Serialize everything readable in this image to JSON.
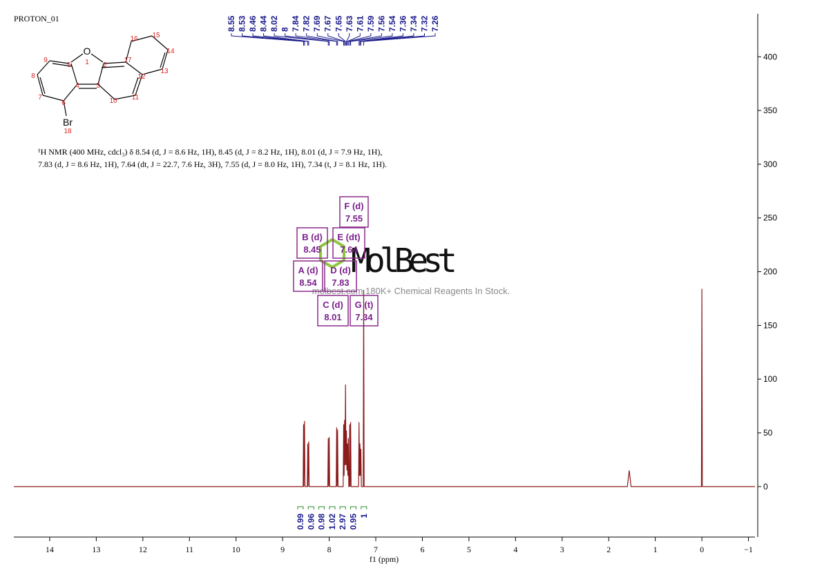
{
  "header": {
    "title": "PROTON_01"
  },
  "molecule": {
    "labels": [
      "O",
      "1",
      "5",
      "2",
      "4",
      "3",
      "9",
      "8",
      "7",
      "6",
      "Br",
      "18",
      "17",
      "16",
      "15",
      "14",
      "13",
      "12",
      "11",
      "10"
    ]
  },
  "description": {
    "lines": [
      "¹H NMR (400 MHz, cdcl₃) δ 8.54 (d, J = 8.6 Hz, 1H), 8.45 (d, J = 8.2 Hz, 1H), 8.01 (d, J = 7.9 Hz, 1H),",
      "7.83 (d, J = 8.6 Hz, 1H), 7.64 (dt, J = 22.7, 7.6 Hz, 3H), 7.55 (d, J = 8.0 Hz, 1H), 7.34 (t, J = 8.1 Hz, 1H)."
    ]
  },
  "peak_labels": [
    8.55,
    8.53,
    8.46,
    8.44,
    8.02,
    8.0,
    7.84,
    7.82,
    7.69,
    7.67,
    7.65,
    7.63,
    7.61,
    7.59,
    7.56,
    7.54,
    7.36,
    7.34,
    7.32,
    7.26
  ],
  "multiplets": [
    {
      "label": "F (d)",
      "shift": 7.55
    },
    {
      "label": "B (d)",
      "shift": 8.45
    },
    {
      "label": "E (dt)",
      "shift": 7.64
    },
    {
      "label": "A (d)",
      "shift": 8.54
    },
    {
      "label": "D (d)",
      "shift": 7.83
    },
    {
      "label": "C (d)",
      "shift": 8.01
    },
    {
      "label": "G (t)",
      "shift": 7.34
    }
  ],
  "integrals": [
    0.99,
    0.96,
    0.98,
    1.02,
    2.97,
    0.95,
    1.0
  ],
  "watermark": {
    "brand": "MolBest",
    "tagline": "molbest.com 180K+ Chemical Reagents In Stock."
  },
  "chart_data": {
    "type": "line",
    "x_label": "f1 (ppm)",
    "color": "#8b1a1a",
    "x": [
      14.77,
      8.56,
      8.55,
      8.545,
      8.53,
      8.52,
      8.47,
      8.46,
      8.455,
      8.44,
      8.43,
      8.03,
      8.02,
      8.01,
      8.0,
      7.99,
      7.85,
      7.84,
      7.83,
      7.82,
      7.81,
      7.7,
      7.69,
      7.68,
      7.67,
      7.66,
      7.65,
      7.64,
      7.63,
      7.62,
      7.61,
      7.6,
      7.59,
      7.58,
      7.57,
      7.56,
      7.55,
      7.54,
      7.53,
      7.37,
      7.36,
      7.35,
      7.34,
      7.33,
      7.32,
      7.31,
      7.27,
      7.26,
      7.25,
      1.6,
      1.56,
      1.52,
      0.01,
      0,
      -0.01,
      -1.14
    ],
    "values": [
      0,
      0,
      58,
      0,
      61,
      0,
      0,
      40,
      0,
      42,
      0,
      0,
      45,
      0,
      46,
      0,
      0,
      55,
      0,
      53,
      0,
      0,
      58,
      10,
      62,
      20,
      95,
      20,
      52,
      15,
      40,
      10,
      45,
      0,
      0,
      58,
      0,
      60,
      0,
      0,
      60,
      10,
      40,
      10,
      35,
      0,
      0,
      183,
      0,
      0,
      15,
      0,
      0,
      184,
      0,
      0
    ],
    "xlim": [
      14.77,
      -1.14
    ],
    "ylim": [
      -47,
      440
    ],
    "xticks": [
      14,
      13,
      12,
      11,
      10,
      9,
      8,
      7,
      6,
      5,
      4,
      3,
      2,
      1,
      0,
      {
        "value": -1,
        "label": "−1"
      }
    ],
    "yticks": [
      0,
      50,
      100,
      150,
      200,
      250,
      300,
      350,
      400
    ]
  }
}
